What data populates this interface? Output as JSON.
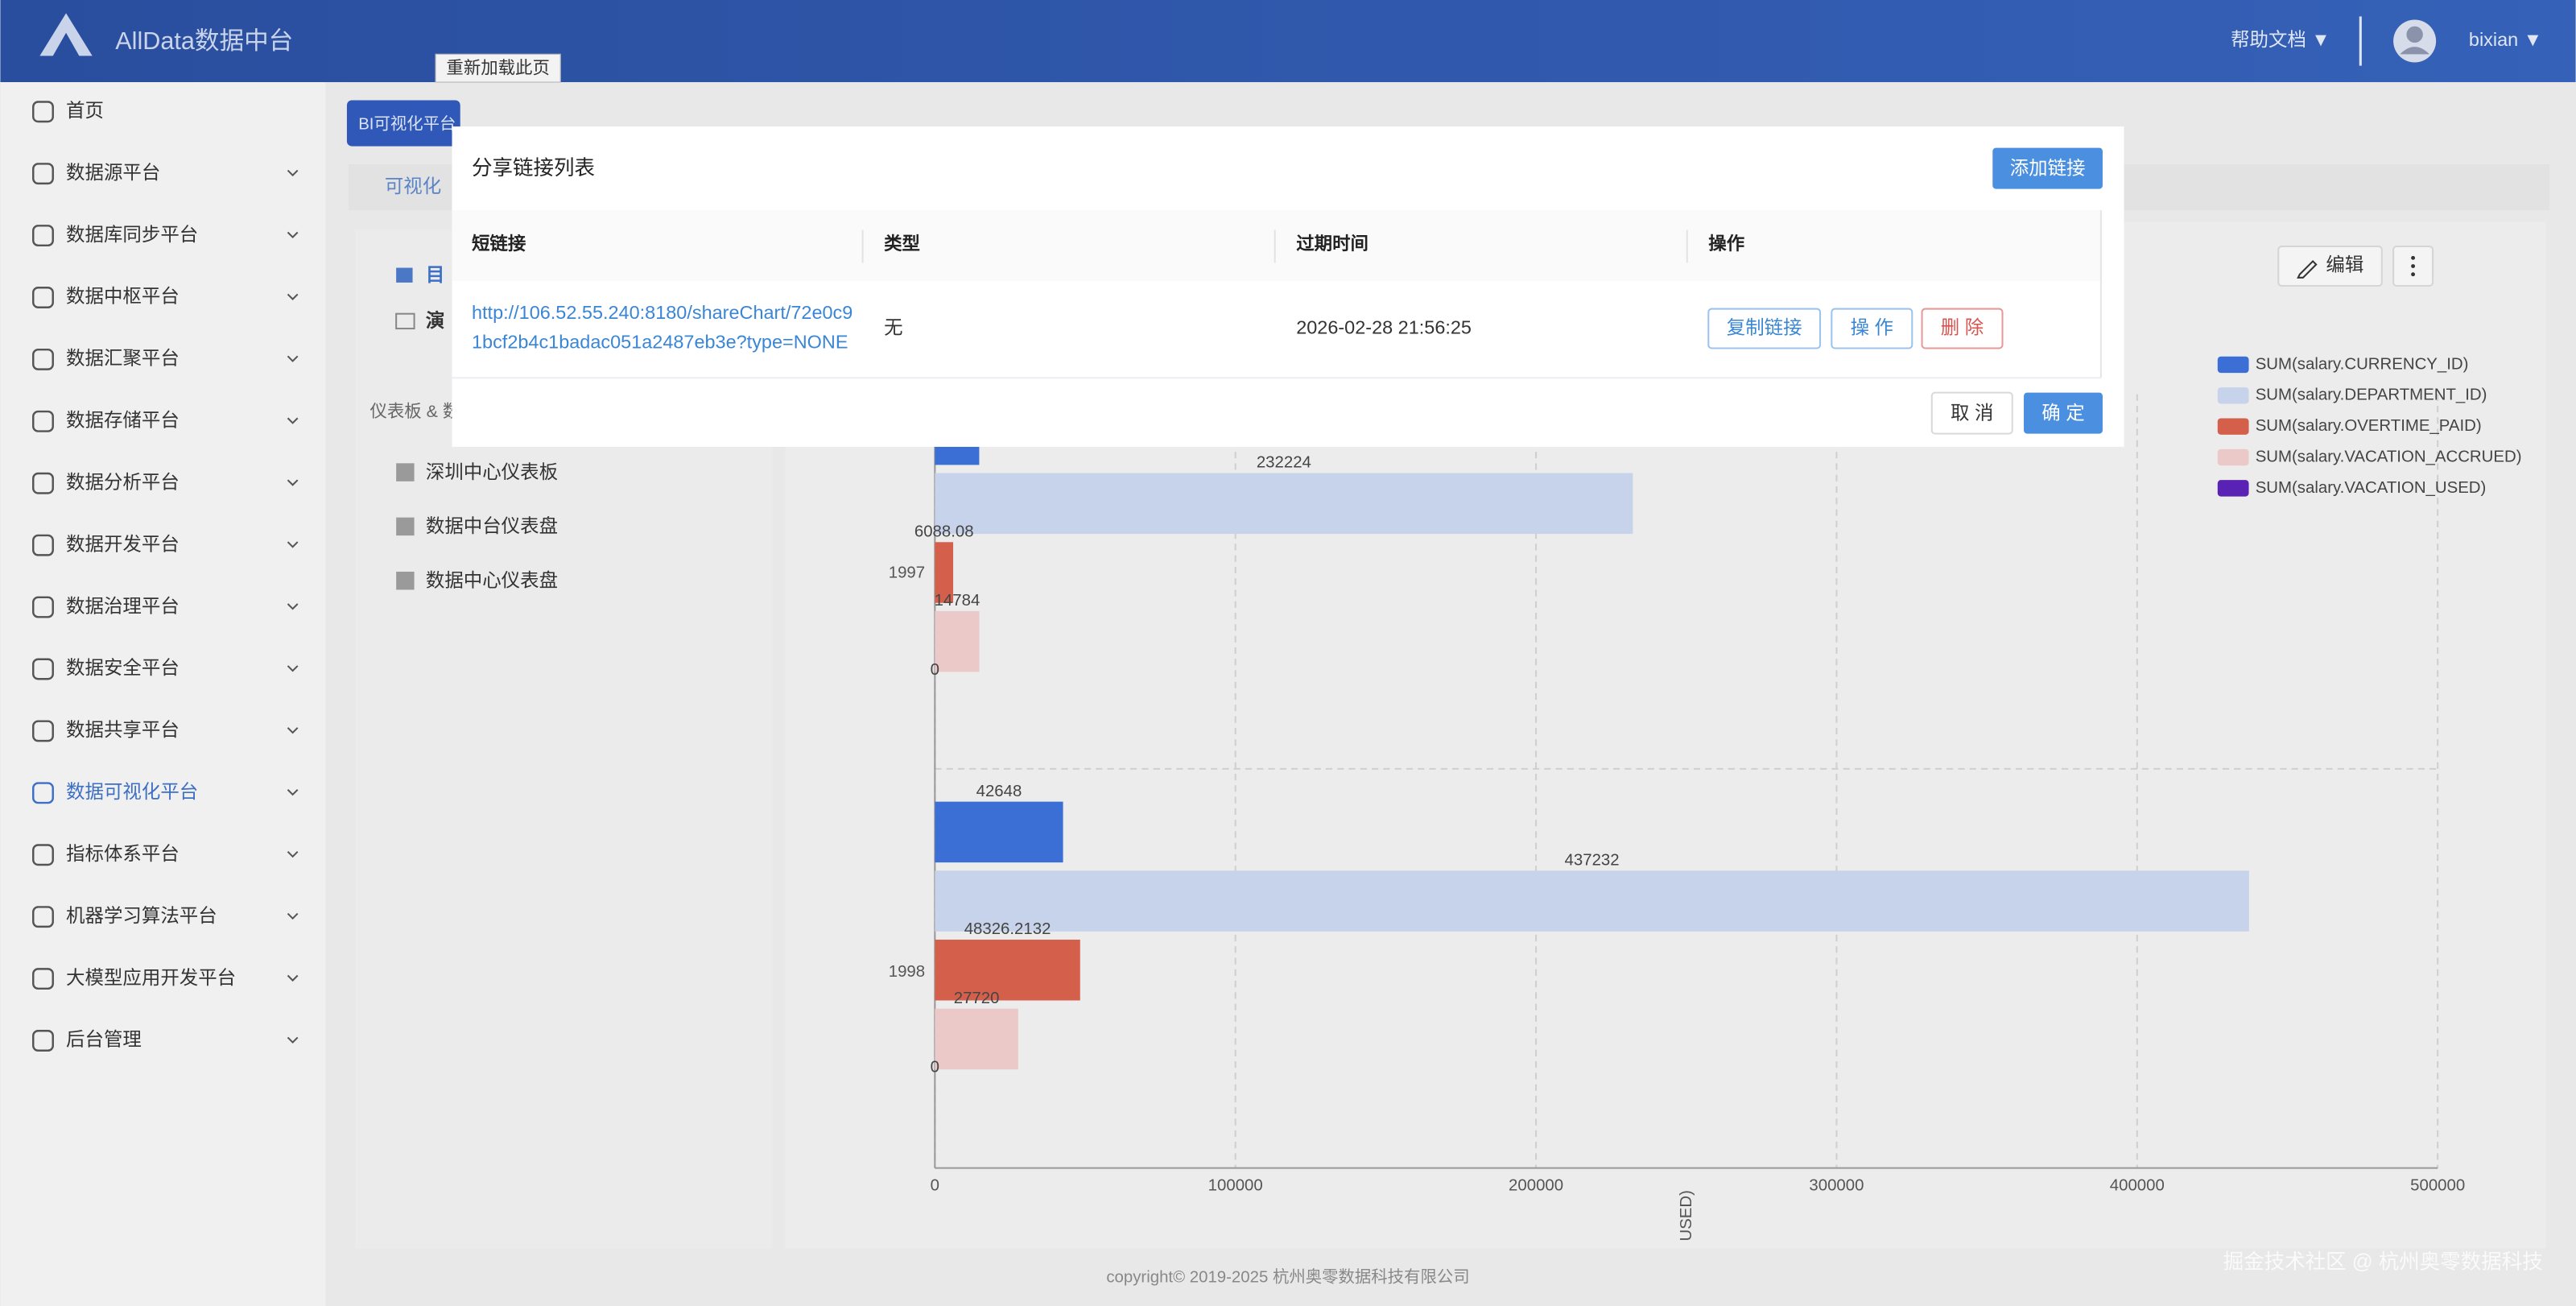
{
  "header": {
    "brand": "AllData数据中台",
    "help": "帮助文档 ▼",
    "user": "bixian ▼"
  },
  "tooltip": "重新加载此页",
  "sidebar": {
    "items": [
      "首页",
      "数据源平台",
      "数据库同步平台",
      "数据中枢平台",
      "数据汇聚平台",
      "数据存储平台",
      "数据分析平台",
      "数据开发平台",
      "数据治理平台",
      "数据安全平台",
      "数据共享平台",
      "数据可视化平台",
      "指标体系平台",
      "机器学习算法平台",
      "大模型应用开发平台",
      "后台管理"
    ],
    "active": 11
  },
  "tabs": {
    "platform": "BI可视化平台",
    "view": "可视化"
  },
  "panel": {
    "catalog": "目",
    "demo": "演",
    "section": "仪表板 & 数",
    "dashboards": [
      "深圳中心仪表板",
      "数据中台仪表盘",
      "数据中心仪表盘"
    ]
  },
  "toolbar": {
    "edit": "编辑"
  },
  "chart_data": {
    "type": "bar",
    "orientation": "horizontal",
    "categories": [
      "1997",
      "1998"
    ],
    "series": [
      {
        "name": "SUM(salary.CURRENCY_ID)",
        "color": "#3b6fd6",
        "values": [
          14750,
          42648
        ]
      },
      {
        "name": "SUM(salary.DEPARTMENT_ID)",
        "color": "#c6d3ea",
        "values": [
          232224,
          437232
        ]
      },
      {
        "name": "SUM(salary.OVERTIME_PAID)",
        "color": "#d4604c",
        "values": [
          6088.08,
          48326.2132
        ]
      },
      {
        "name": "SUM(salary.VACATION_ACCRUED)",
        "color": "#ebc9c9",
        "values": [
          14784,
          27720
        ]
      },
      {
        "name": "SUM(salary.VACATION_USED)",
        "color": "#5a22b4",
        "values": [
          0,
          0
        ]
      }
    ],
    "xlim": [
      0,
      500000
    ],
    "xticks": [
      0,
      100000,
      200000,
      300000,
      400000,
      500000
    ],
    "x_label": "USED)",
    "grid": true
  },
  "dialog": {
    "title": "分享链接列表",
    "add": "添加链接",
    "columns": [
      "短链接",
      "类型",
      "过期时间",
      "操作"
    ],
    "rows": [
      {
        "link_lines": [
          "http://106.52.55.240:8180/shareChart/72e0c9",
          "1bcf2b4c1badac051a2487eb3e?type=NONE"
        ],
        "type": "无",
        "expire": "2026-02-28 21:56:25",
        "actions": [
          "复制链接",
          "操 作",
          "删 除"
        ]
      }
    ],
    "cancel": "取 消",
    "ok": "确 定"
  },
  "footer": {
    "copyright": "copyright© 2019-2025 杭州奥零数据科技有限公司",
    "watermark": "掘金技术社区 @ 杭州奥零数据科技"
  }
}
